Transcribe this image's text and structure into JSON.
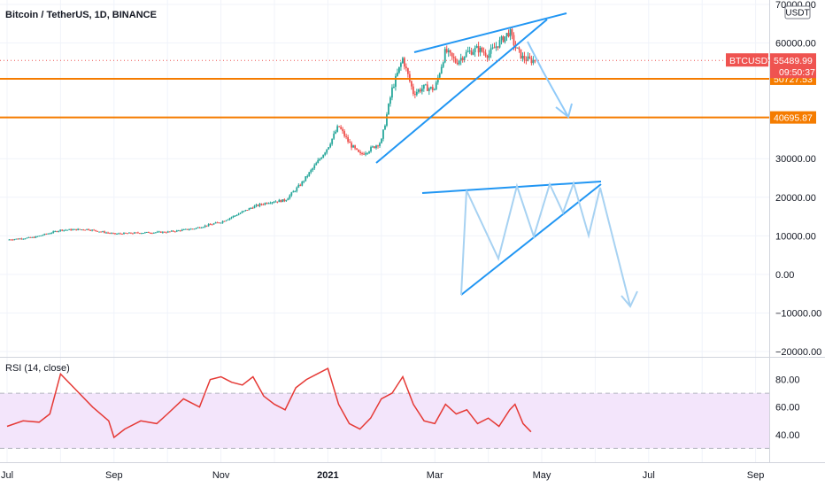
{
  "header": {
    "title": "Bitcoin / TetherUS, 1D, BINANCE"
  },
  "currency_badge": "USDT",
  "price_tag": {
    "symbol": "BTCUSDT",
    "price": "55489.99",
    "countdown": "09:50:37",
    "color": "#ef5350"
  },
  "levels": [
    {
      "value": 50727.53,
      "label": "50727.53",
      "color": "#f57c00"
    },
    {
      "value": 40695.87,
      "label": "40695.87",
      "color": "#f57c00"
    }
  ],
  "price_axis": {
    "ticks": [
      {
        "v": 70000,
        "label": "70000.00"
      },
      {
        "v": 60000,
        "label": "60000.00"
      },
      {
        "v": 30000,
        "label": "30000.00"
      },
      {
        "v": 20000,
        "label": "20000.00"
      },
      {
        "v": 10000,
        "label": "10000.00"
      },
      {
        "v": 0,
        "label": "0.00"
      },
      {
        "v": -10000,
        "label": "−10000.00"
      },
      {
        "v": -20000,
        "label": "−20000.00"
      }
    ]
  },
  "rsi": {
    "title": "RSI (14, close)",
    "upper": 70,
    "lower": 30,
    "ticks": [
      {
        "v": 80,
        "label": "80.00"
      },
      {
        "v": 60,
        "label": "60.00"
      },
      {
        "v": 40,
        "label": "40.00"
      }
    ],
    "color": "#e53935",
    "band_color": "#f3e5fb"
  },
  "time_axis": {
    "labels": [
      {
        "m": 0,
        "label": "Jul",
        "bold": false
      },
      {
        "m": 2,
        "label": "Sep",
        "bold": false
      },
      {
        "m": 4,
        "label": "Nov",
        "bold": false
      },
      {
        "m": 6,
        "label": "2021",
        "bold": true
      },
      {
        "m": 8,
        "label": "Mar",
        "bold": false
      },
      {
        "m": 10,
        "label": "May",
        "bold": false
      },
      {
        "m": 12,
        "label": "Jul",
        "bold": false
      },
      {
        "m": 14,
        "label": "Sep",
        "bold": false
      }
    ]
  },
  "chart_data": [
    {
      "type": "line",
      "title": "Bitcoin / TetherUS, 1D, BINANCE",
      "x_unit": "month offset from 2020-07-01",
      "series": [
        {
          "name": "BTCUSDT",
          "x": [
            0,
            0.5,
            1.0,
            1.5,
            2.0,
            2.5,
            3.0,
            3.5,
            4.0,
            4.3,
            4.6,
            4.9,
            5.2,
            5.5,
            5.8,
            6.0,
            6.2,
            6.4,
            6.6,
            6.8,
            7.0,
            7.2,
            7.4,
            7.6,
            7.8,
            8.0,
            8.2,
            8.4,
            8.6,
            8.8,
            9.0,
            9.2,
            9.4,
            9.5,
            9.65,
            9.8,
            9.9
          ],
          "values": [
            9000,
            9600,
            11500,
            11700,
            10500,
            10800,
            11000,
            11900,
            13600,
            15500,
            17500,
            18800,
            19200,
            23500,
            29000,
            33000,
            38500,
            34000,
            31000,
            32500,
            34500,
            48000,
            56000,
            47000,
            48500,
            48000,
            58000,
            55000,
            57500,
            58500,
            57000,
            60000,
            63000,
            59000,
            56000,
            55500,
            55490
          ]
        }
      ],
      "ylim": [
        -20000,
        70000
      ],
      "hlines": [
        50727.53,
        40695.87
      ],
      "last_price": 55489.99
    },
    {
      "type": "line",
      "title": "RSI (14, close)",
      "series": [
        {
          "name": "RSI",
          "x": [
            0,
            0.3,
            0.6,
            0.8,
            1.0,
            1.3,
            1.6,
            1.9,
            2.0,
            2.2,
            2.5,
            2.8,
            3.0,
            3.3,
            3.6,
            3.8,
            4.0,
            4.2,
            4.4,
            4.6,
            4.8,
            5.0,
            5.2,
            5.4,
            5.6,
            5.8,
            6.0,
            6.2,
            6.4,
            6.6,
            6.8,
            7.0,
            7.2,
            7.4,
            7.6,
            7.8,
            8.0,
            8.2,
            8.4,
            8.6,
            8.8,
            9.0,
            9.2,
            9.4,
            9.5,
            9.65,
            9.8
          ],
          "values": [
            46,
            50,
            49,
            55,
            84,
            72,
            60,
            50,
            38,
            44,
            50,
            48,
            55,
            66,
            60,
            80,
            82,
            78,
            76,
            82,
            68,
            62,
            58,
            74,
            80,
            84,
            88,
            62,
            48,
            44,
            52,
            66,
            70,
            82,
            62,
            50,
            48,
            62,
            55,
            58,
            48,
            52,
            46,
            58,
            62,
            48,
            42
          ]
        }
      ],
      "ylim": [
        20,
        90
      ],
      "bands": [
        70,
        30
      ]
    }
  ]
}
